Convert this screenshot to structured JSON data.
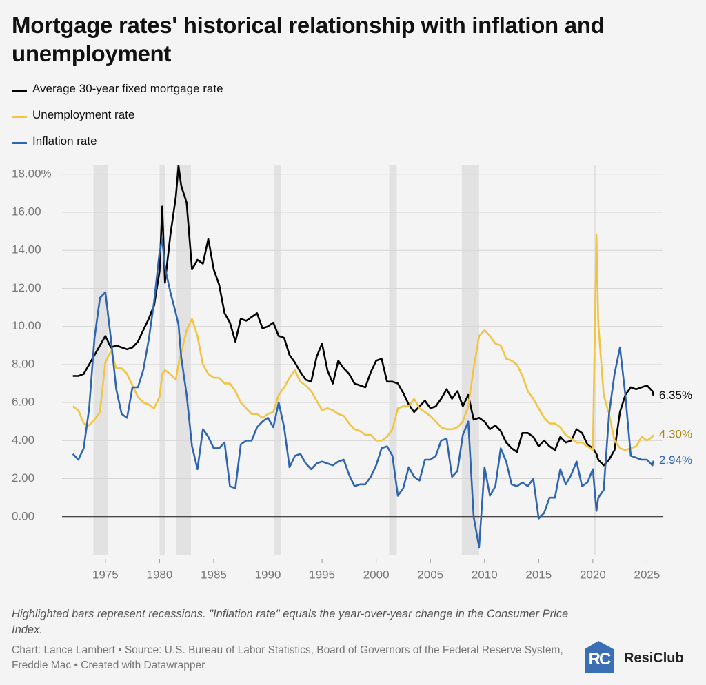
{
  "chart_data": {
    "type": "line",
    "title": "Mortgage rates' historical relationship with inflation and unemployment",
    "notes": "Highlighted bars represent recessions. \"Inflation rate\" equals the year-over-year change in the Consumer Price Index.",
    "source": "Chart: Lance Lambert • Source: U.S. Bureau of Labor Statistics, Board of Governors of the Federal Reserve System, Freddie Mac • Created with Datawrapper",
    "logo_mark": "RC",
    "logo_text": "ResiClub",
    "xlim": [
      1971,
      2026.5
    ],
    "xticks": [
      1975,
      1980,
      1985,
      1990,
      1995,
      2000,
      2005,
      2010,
      2015,
      2020,
      2025
    ],
    "ylim": [
      -2,
      18.5
    ],
    "yticks": [
      {
        "value": 0,
        "label": "0.00"
      },
      {
        "value": 2,
        "label": "2.00"
      },
      {
        "value": 4,
        "label": "4.00"
      },
      {
        "value": 6,
        "label": "6.00"
      },
      {
        "value": 8,
        "label": "8.00"
      },
      {
        "value": 10,
        "label": "10.00"
      },
      {
        "value": 12,
        "label": "12.00"
      },
      {
        "value": 14,
        "label": "14.00"
      },
      {
        "value": 16,
        "label": "16.00"
      },
      {
        "value": 18,
        "label": "18.00%"
      }
    ],
    "grid": true,
    "recessions": [
      [
        1973.9,
        1975.2
      ],
      [
        1980.0,
        1980.5
      ],
      [
        1981.5,
        1982.9
      ],
      [
        1990.6,
        1991.2
      ],
      [
        2001.2,
        2001.9
      ],
      [
        2007.9,
        2009.5
      ],
      [
        2020.1,
        2020.3
      ]
    ],
    "recession_color": "#e2e2e2",
    "x": [
      1972,
      1972.5,
      1973,
      1973.5,
      1974,
      1974.5,
      1975,
      1975.5,
      1976,
      1976.5,
      1977,
      1977.5,
      1978,
      1978.5,
      1979,
      1979.5,
      1980,
      1980.25,
      1980.5,
      1981,
      1981.5,
      1981.75,
      1982,
      1982.5,
      1983,
      1983.5,
      1984,
      1984.5,
      1985,
      1985.5,
      1986,
      1986.5,
      1987,
      1987.5,
      1988,
      1988.5,
      1989,
      1989.5,
      1990,
      1990.5,
      1991,
      1991.5,
      1992,
      1992.5,
      1993,
      1993.5,
      1994,
      1994.5,
      1995,
      1995.5,
      1996,
      1996.5,
      1997,
      1997.5,
      1998,
      1998.5,
      1999,
      1999.5,
      2000,
      2000.5,
      2001,
      2001.5,
      2002,
      2002.5,
      2003,
      2003.5,
      2004,
      2004.5,
      2005,
      2005.5,
      2006,
      2006.5,
      2007,
      2007.5,
      2008,
      2008.5,
      2009,
      2009.5,
      2010,
      2010.5,
      2011,
      2011.5,
      2012,
      2012.5,
      2013,
      2013.5,
      2014,
      2014.5,
      2015,
      2015.5,
      2016,
      2016.5,
      2017,
      2017.5,
      2018,
      2018.5,
      2019,
      2019.5,
      2020,
      2020.33,
      2020.5,
      2021,
      2021.5,
      2022,
      2022.5,
      2023,
      2023.5,
      2024,
      2024.5,
      2025,
      2025.5,
      2025.6
    ],
    "series": [
      {
        "name": "Average 30-year fixed mortgage rate",
        "color": "#000000",
        "label_color": "#000000",
        "values": [
          7.4,
          7.4,
          7.5,
          8.0,
          8.5,
          9.0,
          9.5,
          8.9,
          9.0,
          8.9,
          8.8,
          8.9,
          9.2,
          9.8,
          10.4,
          11.1,
          12.9,
          16.3,
          12.3,
          14.8,
          16.8,
          18.45,
          17.4,
          16.5,
          13.0,
          13.5,
          13.3,
          14.6,
          13.0,
          12.2,
          10.7,
          10.2,
          9.2,
          10.4,
          10.3,
          10.5,
          10.7,
          9.9,
          10.0,
          10.2,
          9.5,
          9.4,
          8.5,
          8.1,
          7.6,
          7.2,
          7.1,
          8.4,
          9.1,
          7.7,
          7.0,
          8.2,
          7.8,
          7.5,
          7.0,
          6.9,
          6.8,
          7.6,
          8.2,
          8.3,
          7.1,
          7.1,
          7.0,
          6.5,
          5.9,
          5.5,
          5.8,
          6.1,
          5.7,
          5.8,
          6.2,
          6.7,
          6.2,
          6.6,
          5.8,
          6.4,
          5.1,
          5.2,
          5.0,
          4.6,
          4.8,
          4.5,
          3.9,
          3.6,
          3.4,
          4.4,
          4.4,
          4.2,
          3.7,
          4.0,
          3.7,
          3.5,
          4.2,
          3.9,
          4.0,
          4.6,
          4.4,
          3.8,
          3.6,
          3.3,
          3.0,
          2.7,
          3.0,
          3.5,
          5.5,
          6.4,
          6.8,
          6.7,
          6.8,
          6.9,
          6.6,
          6.35
        ],
        "value_labels": [
          null,
          null,
          null,
          null,
          null,
          null,
          null,
          null,
          null,
          null,
          null,
          null,
          null,
          null,
          null,
          null,
          null,
          null,
          null,
          null,
          null,
          null,
          null,
          null,
          null,
          null,
          null,
          null,
          null,
          null,
          null,
          null,
          null,
          null,
          null,
          null,
          null,
          null,
          null,
          null,
          null,
          null,
          null,
          null,
          null,
          null,
          null,
          null,
          null,
          null,
          null,
          null,
          null,
          null,
          null,
          null,
          null,
          null,
          null,
          null,
          null,
          null,
          null,
          null,
          null,
          null,
          null,
          null,
          null,
          null,
          null,
          null,
          null,
          null,
          null,
          null,
          null,
          null,
          null,
          null,
          null,
          null,
          null,
          null,
          null,
          null,
          null,
          null,
          null,
          null,
          null,
          null,
          null,
          null,
          null,
          null,
          null,
          null,
          null,
          null,
          null,
          null,
          null,
          null,
          null,
          null,
          null,
          null,
          null,
          null,
          null,
          "6.35%"
        ]
      },
      {
        "name": "Unemployment rate",
        "color": "#f2c443",
        "label_color": "#a9850f",
        "values": [
          5.8,
          5.6,
          4.9,
          4.8,
          5.1,
          5.5,
          8.1,
          8.7,
          7.8,
          7.8,
          7.5,
          6.9,
          6.3,
          6.0,
          5.9,
          5.7,
          6.3,
          7.5,
          7.7,
          7.5,
          7.2,
          8.0,
          8.6,
          9.8,
          10.4,
          9.5,
          8.0,
          7.5,
          7.3,
          7.3,
          7.0,
          7.0,
          6.6,
          6.0,
          5.7,
          5.4,
          5.4,
          5.2,
          5.4,
          5.5,
          6.4,
          6.8,
          7.3,
          7.7,
          7.1,
          6.9,
          6.6,
          6.1,
          5.6,
          5.7,
          5.6,
          5.4,
          5.3,
          4.9,
          4.6,
          4.5,
          4.3,
          4.3,
          4.0,
          4.0,
          4.2,
          4.6,
          5.7,
          5.8,
          5.8,
          6.2,
          5.7,
          5.5,
          5.3,
          5.0,
          4.7,
          4.6,
          4.6,
          4.7,
          5.0,
          5.8,
          7.8,
          9.5,
          9.8,
          9.5,
          9.1,
          9.0,
          8.3,
          8.2,
          8.0,
          7.4,
          6.6,
          6.2,
          5.7,
          5.2,
          4.9,
          4.9,
          4.7,
          4.3,
          4.1,
          3.9,
          3.9,
          3.7,
          3.5,
          14.8,
          10.2,
          6.4,
          5.4,
          4.0,
          3.6,
          3.5,
          3.6,
          3.7,
          4.2,
          4.0,
          4.2,
          4.3
        ],
        "value_labels": [
          null,
          null,
          null,
          null,
          null,
          null,
          null,
          null,
          null,
          null,
          null,
          null,
          null,
          null,
          null,
          null,
          null,
          null,
          null,
          null,
          null,
          null,
          null,
          null,
          null,
          null,
          null,
          null,
          null,
          null,
          null,
          null,
          null,
          null,
          null,
          null,
          null,
          null,
          null,
          null,
          null,
          null,
          null,
          null,
          null,
          null,
          null,
          null,
          null,
          null,
          null,
          null,
          null,
          null,
          null,
          null,
          null,
          null,
          null,
          null,
          null,
          null,
          null,
          null,
          null,
          null,
          null,
          null,
          null,
          null,
          null,
          null,
          null,
          null,
          null,
          null,
          null,
          null,
          null,
          null,
          null,
          null,
          null,
          null,
          null,
          null,
          null,
          null,
          null,
          null,
          null,
          null,
          null,
          null,
          null,
          null,
          null,
          null,
          null,
          null,
          null,
          null,
          null,
          null,
          null,
          null,
          null,
          null,
          null,
          null,
          null,
          "4.30%"
        ]
      },
      {
        "name": "Inflation rate",
        "color": "#2f65b0",
        "label_color": "#2f65b0",
        "values": [
          3.3,
          3.0,
          3.6,
          5.7,
          9.4,
          11.5,
          11.8,
          9.4,
          6.7,
          5.4,
          5.2,
          6.8,
          6.8,
          7.7,
          9.3,
          11.3,
          13.9,
          14.6,
          13.1,
          11.8,
          10.7,
          10.1,
          8.4,
          6.4,
          3.7,
          2.5,
          4.6,
          4.2,
          3.6,
          3.6,
          3.9,
          1.6,
          1.5,
          3.8,
          4.0,
          4.0,
          4.7,
          5.0,
          5.2,
          4.7,
          6.0,
          4.7,
          2.6,
          3.2,
          3.3,
          2.8,
          2.5,
          2.8,
          2.9,
          2.8,
          2.7,
          2.9,
          3.0,
          2.2,
          1.6,
          1.7,
          1.7,
          2.1,
          2.7,
          3.6,
          3.7,
          3.2,
          1.1,
          1.5,
          2.6,
          2.1,
          1.9,
          3.0,
          3.0,
          3.2,
          4.0,
          4.1,
          2.1,
          2.4,
          4.3,
          5.0,
          0.0,
          -1.6,
          2.6,
          1.1,
          1.6,
          3.6,
          2.9,
          1.7,
          1.6,
          1.8,
          1.6,
          2.0,
          -0.1,
          0.2,
          1.0,
          1.0,
          2.5,
          1.7,
          2.2,
          2.9,
          1.6,
          1.8,
          2.5,
          0.3,
          1.0,
          1.4,
          5.4,
          7.5,
          8.9,
          6.4,
          3.2,
          3.1,
          3.0,
          3.0,
          2.7,
          2.94
        ],
        "value_labels": [
          null,
          null,
          null,
          null,
          null,
          null,
          null,
          null,
          null,
          null,
          null,
          null,
          null,
          null,
          null,
          null,
          null,
          null,
          null,
          null,
          null,
          null,
          null,
          null,
          null,
          null,
          null,
          null,
          null,
          null,
          null,
          null,
          null,
          null,
          null,
          null,
          null,
          null,
          null,
          null,
          null,
          null,
          null,
          null,
          null,
          null,
          null,
          null,
          null,
          null,
          null,
          null,
          null,
          null,
          null,
          null,
          null,
          null,
          null,
          null,
          null,
          null,
          null,
          null,
          null,
          null,
          null,
          null,
          null,
          null,
          null,
          null,
          null,
          null,
          null,
          null,
          null,
          null,
          null,
          null,
          null,
          null,
          null,
          null,
          null,
          null,
          null,
          null,
          null,
          null,
          null,
          null,
          null,
          null,
          null,
          null,
          null,
          null,
          null,
          null,
          null,
          null,
          null,
          null,
          null,
          null,
          null,
          null,
          null,
          null,
          null,
          "2.94%"
        ]
      }
    ]
  }
}
